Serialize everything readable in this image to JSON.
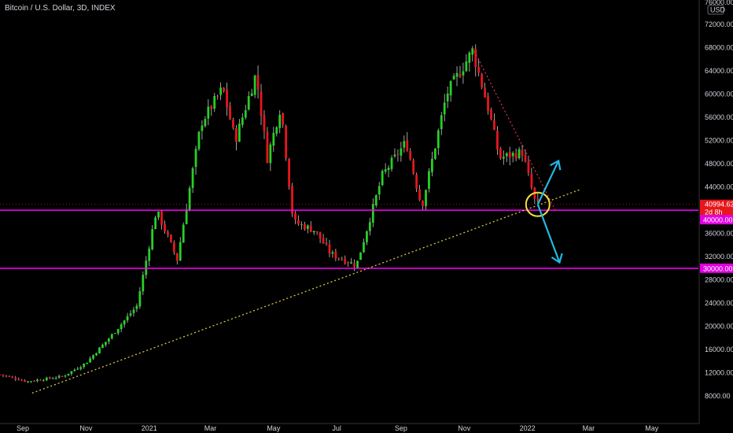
{
  "header": {
    "title": "Bitcoin / U.S. Dollar, 3D, INDEX"
  },
  "axis_controls": {
    "currency_label": "USD",
    "top_partial_label": "76000.00"
  },
  "current_price": {
    "value": "40994.63",
    "countdown": "2d 8h"
  },
  "colors": {
    "up": "#26d026",
    "down": "#e8161c",
    "level_line": "#ff00ff",
    "support_trend": "#e6d64f",
    "resistance_trend": "#e0305a",
    "arrow": "#22b8e6",
    "circle": "#f3e040",
    "price_tag": "#e8161c",
    "level_tag": "#e000e0"
  },
  "chart_data": {
    "type": "candlestick",
    "title": "Bitcoin / U.S. Dollar, 3D, INDEX",
    "xlabel": "",
    "ylabel": "",
    "ylim": [
      5000,
      77000
    ],
    "y_ticks": [
      "8000.00",
      "12000.00",
      "16000.00",
      "20000.00",
      "24000.00",
      "28000.00",
      "32000.00",
      "36000.00",
      "44000.00",
      "48000.00",
      "52000.00",
      "56000.00",
      "60000.00",
      "64000.00",
      "68000.00",
      "72000.00"
    ],
    "x_tick_labels": [
      "Sep",
      "Nov",
      "2021",
      "Mar",
      "May",
      "Jul",
      "Sep",
      "Nov",
      "2022",
      "Mar",
      "May"
    ],
    "x_tick_dates": [
      "2020-09-01",
      "2020-11-01",
      "2021-01-01",
      "2021-03-01",
      "2021-05-01",
      "2021-07-01",
      "2021-09-01",
      "2021-11-01",
      "2022-01-01",
      "2022-03-01",
      "2022-05-01"
    ],
    "xlim": [
      "2020-08-10",
      "2022-06-15"
    ],
    "price_path": [
      [
        "2020-08-10",
        11700
      ],
      [
        "2020-09-05",
        10500
      ],
      [
        "2020-10-10",
        11400
      ],
      [
        "2020-11-01",
        13700
      ],
      [
        "2020-11-25",
        18300
      ],
      [
        "2020-12-20",
        23500
      ],
      [
        "2021-01-08",
        40000
      ],
      [
        "2021-01-28",
        31500
      ],
      [
        "2021-02-20",
        55000
      ],
      [
        "2021-03-13",
        61000
      ],
      [
        "2021-03-25",
        52000
      ],
      [
        "2021-04-14",
        63500
      ],
      [
        "2021-04-25",
        49000
      ],
      [
        "2021-05-08",
        58000
      ],
      [
        "2021-05-20",
        38000
      ],
      [
        "2021-06-10",
        36500
      ],
      [
        "2021-06-25",
        32500
      ],
      [
        "2021-07-20",
        30500
      ],
      [
        "2021-08-14",
        46000
      ],
      [
        "2021-09-06",
        51800
      ],
      [
        "2021-09-21",
        40500
      ],
      [
        "2021-10-15",
        60000
      ],
      [
        "2021-11-09",
        67500
      ],
      [
        "2021-11-25",
        57000
      ],
      [
        "2021-12-05",
        49000
      ],
      [
        "2021-12-27",
        50000
      ],
      [
        "2022-01-09",
        41000
      ],
      [
        "2022-01-11",
        40995
      ]
    ],
    "horizontal_levels": [
      {
        "price": 40000,
        "label": "40000.00"
      },
      {
        "price": 30000,
        "label": "30000.00"
      }
    ],
    "trendlines": [
      {
        "name": "support",
        "from": [
          "2020-09-10",
          8500
        ],
        "to": [
          "2022-02-20",
          43500
        ]
      },
      {
        "name": "resistance",
        "from": [
          "2021-11-09",
          68000
        ],
        "to": [
          "2022-01-28",
          40000
        ]
      }
    ],
    "annotations": {
      "circle_at": [
        "2022-01-11",
        41000
      ],
      "arrow_up_to": [
        "2022-01-31",
        48500
      ],
      "arrow_down_to": [
        "2022-02-01",
        31000
      ]
    },
    "grid": false,
    "legend": "none"
  }
}
